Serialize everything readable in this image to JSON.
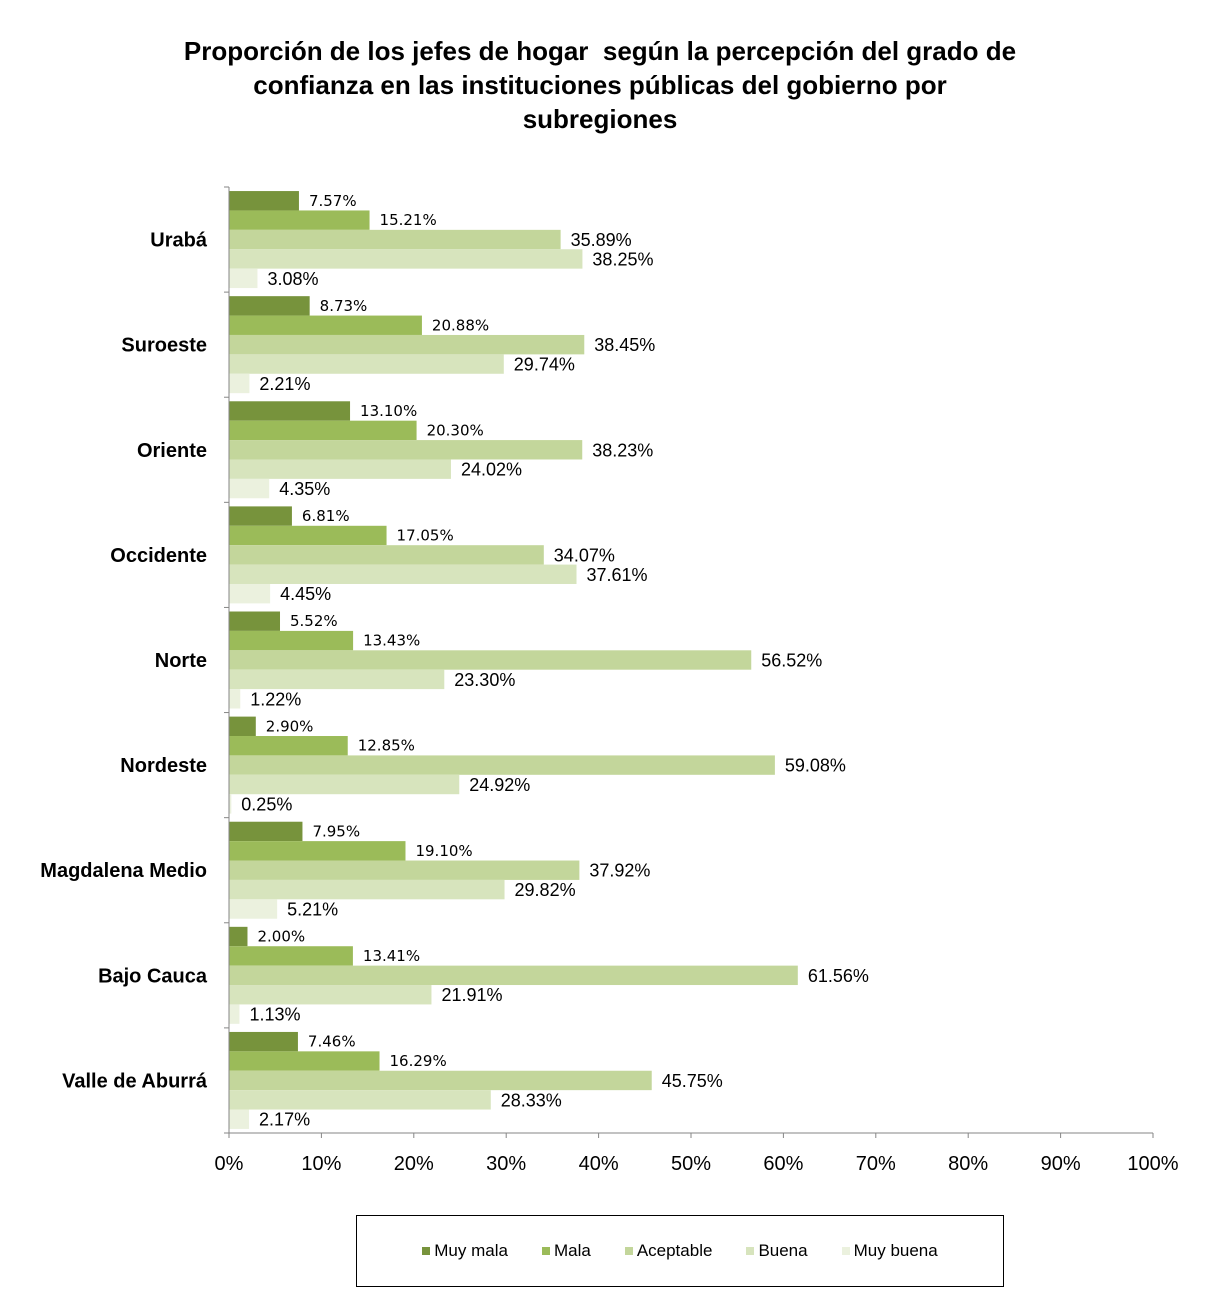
{
  "chart_data": {
    "type": "bar",
    "orientation": "horizontal",
    "title_lines": [
      "Proporción de los jefes de hogar  según la percepción del grado de",
      "confianza en las instituciones públicas del gobierno por",
      "subregiones"
    ],
    "categories": [
      "Urabá",
      "Suroeste",
      "Oriente",
      "Occidente",
      "Norte",
      "Nordeste",
      "Magdalena Medio",
      "Bajo Cauca",
      "Valle de Aburrá"
    ],
    "series": [
      {
        "name": "Muy mala",
        "color": "#77933c",
        "values": [
          7.57,
          8.73,
          13.1,
          6.81,
          5.52,
          2.9,
          7.95,
          2.0,
          7.46
        ],
        "labels": [
          "7.57%",
          "8.73%",
          "13.10%",
          "6.81%",
          "5.52%",
          "2.90%",
          "7.95%",
          "2.00%",
          "7.46%"
        ]
      },
      {
        "name": "Mala",
        "color": "#9bbb59",
        "values": [
          15.21,
          20.88,
          20.3,
          17.05,
          13.43,
          12.85,
          19.1,
          13.41,
          16.29
        ],
        "labels": [
          "15.21%",
          "20.88%",
          "20.30%",
          "17.05%",
          "13.43%",
          "12.85%",
          "19.10%",
          "13.41%",
          "16.29%"
        ]
      },
      {
        "name": "Aceptable",
        "color": "#c3d69b",
        "values": [
          35.89,
          38.45,
          38.23,
          34.07,
          56.52,
          59.08,
          37.92,
          61.56,
          45.75
        ],
        "labels": [
          "35.89%",
          "38.45%",
          "38.23%",
          "34.07%",
          "56.52%",
          "59.08%",
          "37.92%",
          "61.56%",
          "45.75%"
        ]
      },
      {
        "name": "Buena",
        "color": "#d7e4bd",
        "values": [
          38.25,
          29.74,
          24.02,
          37.61,
          23.3,
          24.92,
          29.82,
          21.91,
          28.33
        ],
        "labels": [
          "38.25%",
          "29.74%",
          "24.02%",
          "37.61%",
          "23.30%",
          "24.92%",
          "29.82%",
          "21.91%",
          "28.33%"
        ]
      },
      {
        "name": "Muy buena",
        "color": "#ebf1de",
        "values": [
          3.08,
          2.21,
          4.35,
          4.45,
          1.22,
          0.25,
          5.21,
          1.13,
          2.17
        ],
        "labels": [
          "3.08%",
          "2.21%",
          "4.35%",
          "4.45%",
          "1.22%",
          "0.25%",
          "5.21%",
          "1.13%",
          "2.17%"
        ]
      }
    ],
    "xlim": [
      0,
      100
    ],
    "x_ticks": [
      "0%",
      "10%",
      "20%",
      "30%",
      "40%",
      "50%",
      "60%",
      "70%",
      "80%",
      "90%",
      "100%"
    ],
    "xlabel": "",
    "ylabel": "",
    "grid": false,
    "legend_position": "bottom"
  }
}
